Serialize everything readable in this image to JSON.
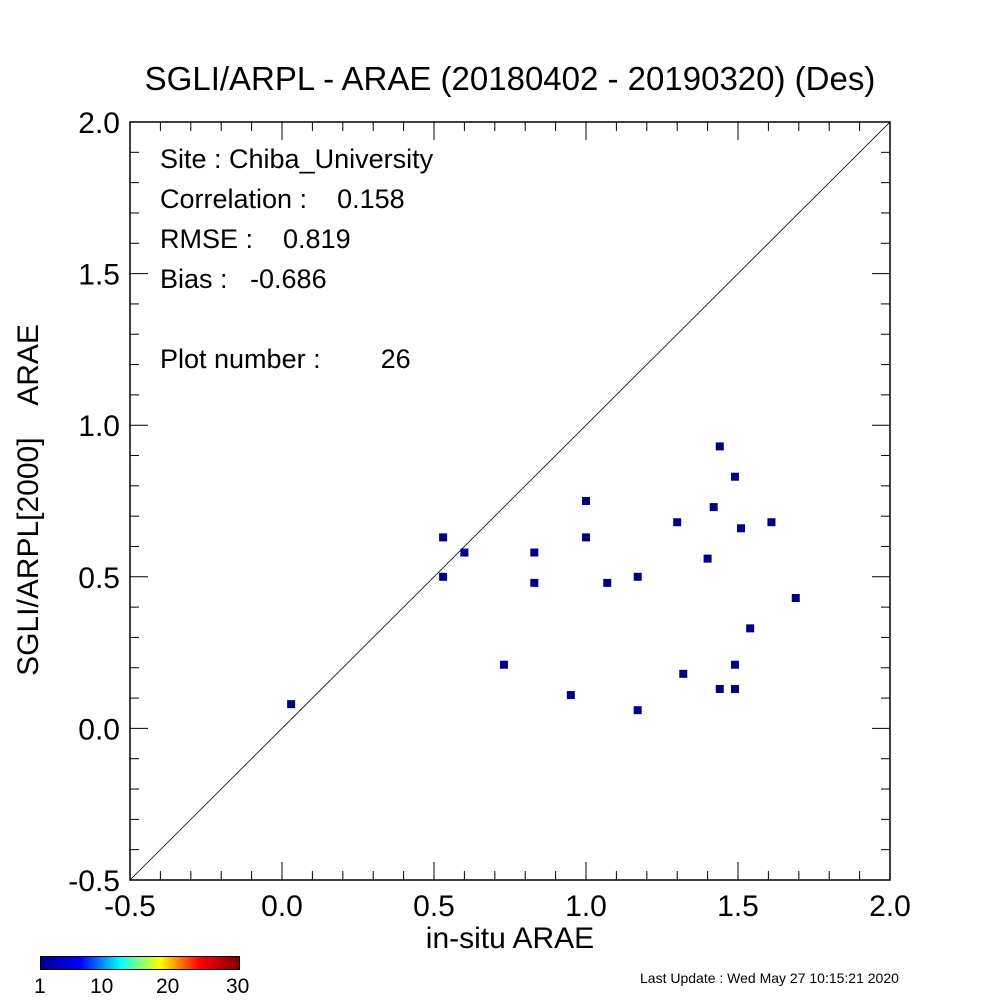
{
  "chart_data": {
    "type": "scatter",
    "title": "SGLI/ARPL - ARAE (20180402 - 20190320) (Des)",
    "xlabel": "in-situ ARAE",
    "ylabel": "SGLI/ARPL[2000]    ARAE",
    "xlim": [
      -0.5,
      2.0
    ],
    "ylim": [
      -0.5,
      2.0
    ],
    "xticks": [
      "-0.5",
      "0.0",
      "0.5",
      "1.0",
      "1.5",
      "2.0"
    ],
    "yticks": [
      "-0.5",
      "0.0",
      "0.5",
      "1.0",
      "1.5",
      "2.0"
    ],
    "reference_line": "1:1",
    "marker_color": "#000080",
    "stats": {
      "site": "Site : Chiba_University",
      "correlation": "Correlation :    0.158",
      "rmse": "RMSE :    0.819",
      "bias": "Bias :   -0.686",
      "plot_number": "Plot number :        26"
    },
    "points": [
      {
        "x": 0.03,
        "y": 0.08
      },
      {
        "x": 0.53,
        "y": 0.63
      },
      {
        "x": 0.53,
        "y": 0.5
      },
      {
        "x": 0.6,
        "y": 0.58
      },
      {
        "x": 0.73,
        "y": 0.21
      },
      {
        "x": 0.83,
        "y": 0.58
      },
      {
        "x": 0.83,
        "y": 0.48
      },
      {
        "x": 0.95,
        "y": 0.11
      },
      {
        "x": 1.0,
        "y": 0.75
      },
      {
        "x": 1.0,
        "y": 0.63
      },
      {
        "x": 1.07,
        "y": 0.48
      },
      {
        "x": 1.17,
        "y": 0.5
      },
      {
        "x": 1.17,
        "y": 0.06
      },
      {
        "x": 1.3,
        "y": 0.68
      },
      {
        "x": 1.32,
        "y": 0.18
      },
      {
        "x": 1.4,
        "y": 0.56
      },
      {
        "x": 1.42,
        "y": 0.73
      },
      {
        "x": 1.44,
        "y": 0.93
      },
      {
        "x": 1.44,
        "y": 0.13
      },
      {
        "x": 1.49,
        "y": 0.83
      },
      {
        "x": 1.49,
        "y": 0.21
      },
      {
        "x": 1.49,
        "y": 0.13
      },
      {
        "x": 1.51,
        "y": 0.66
      },
      {
        "x": 1.54,
        "y": 0.33
      },
      {
        "x": 1.61,
        "y": 0.68
      },
      {
        "x": 1.69,
        "y": 0.43
      }
    ]
  },
  "colorbar": {
    "ticks": [
      "1",
      "10",
      "20",
      "30"
    ],
    "colors": [
      "#00008f",
      "#0000ff",
      "#00ffff",
      "#ffff00",
      "#ff0000",
      "#800000"
    ]
  },
  "footer": {
    "last_update": "Last Update : Wed May 27 10:15:21 2020"
  }
}
